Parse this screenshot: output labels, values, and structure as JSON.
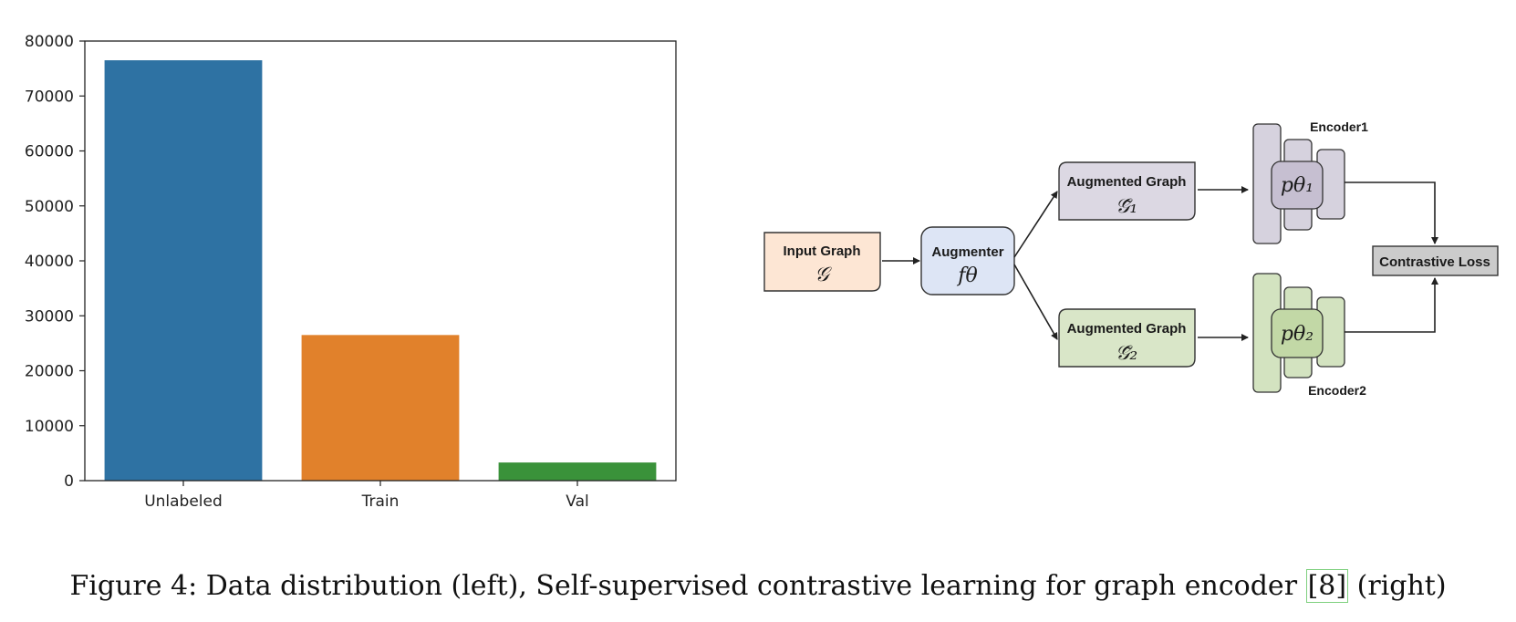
{
  "caption": {
    "prefix": "Figure 4: Data distribution (left), Self-supervised contrastive learning for graph encoder ",
    "cite": "[8]",
    "suffix": " (right)"
  },
  "chart_data": {
    "type": "bar",
    "categories": [
      "Unlabeled",
      "Train",
      "Val"
    ],
    "values": [
      76500,
      26500,
      3300
    ],
    "colors": [
      "#2e72a3",
      "#e1812b",
      "#3a923a"
    ],
    "ylim": [
      0,
      80000
    ],
    "yticks": [
      0,
      10000,
      20000,
      30000,
      40000,
      50000,
      60000,
      70000,
      80000
    ],
    "grid": false
  },
  "diagram": {
    "input": {
      "title": "Input Graph",
      "symbol": "𝒢",
      "fill": "#fde6d4"
    },
    "augmenter": {
      "title": "Augmenter",
      "symbol": "fθ",
      "fill": "#dde5f5"
    },
    "aug1": {
      "title": "Augmented Graph",
      "symbol": "𝒢̃₁",
      "fill": "#dcd8e3"
    },
    "aug2": {
      "title": "Augmented Graph",
      "symbol": "𝒢̃₂",
      "fill": "#d9e6c8"
    },
    "encoder1": {
      "label": "Encoder1",
      "symbol": "pθ₁",
      "fill": "#d6d2de",
      "core_fill": "#c6bfd1"
    },
    "encoder2": {
      "label": "Encoder2",
      "symbol": "pθ₂",
      "fill": "#d3e3c0",
      "core_fill": "#c2d8a6"
    },
    "loss": {
      "title": "Contrastive Loss",
      "fill": "#cbcbcb"
    }
  }
}
